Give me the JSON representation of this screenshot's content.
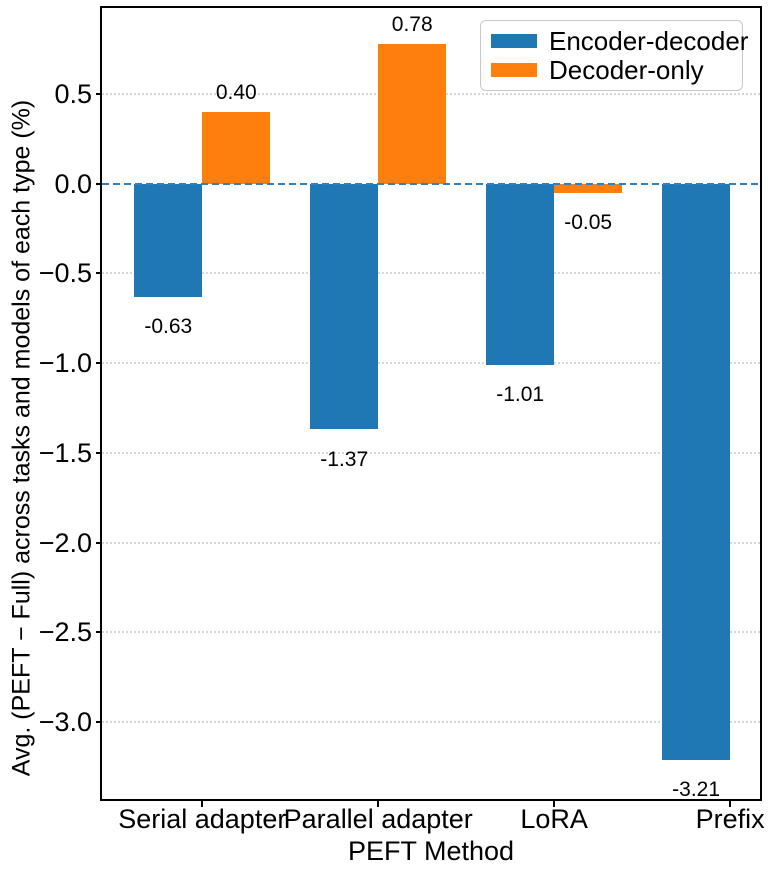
{
  "chart_data": {
    "type": "bar",
    "title": "",
    "xlabel": "PEFT Method",
    "ylabel": "Avg. (PEFT − Full) across tasks and models of each type (%)",
    "categories": [
      "Serial adapter",
      "Parallel adapter",
      "LoRA",
      "Prefix"
    ],
    "series": [
      {
        "name": "Encoder-decoder",
        "color": "#1f77b4",
        "values": [
          -0.63,
          -1.37,
          -1.01,
          -3.21
        ],
        "labels": [
          "-0.63",
          "-1.37",
          "-1.01",
          "-3.21"
        ]
      },
      {
        "name": "Decoder-only",
        "color": "#ff7f0e",
        "values": [
          0.4,
          0.78,
          -0.05,
          null
        ],
        "labels": [
          "0.40",
          "0.78",
          "-0.05",
          null
        ]
      }
    ],
    "ylim": [
      -3.43,
      0.98
    ],
    "yticks": {
      "values": [
        0.5,
        0.0,
        -0.5,
        -1.0,
        -1.5,
        -2.0,
        -2.5,
        -3.0
      ],
      "labels": [
        "0.5",
        "0.0",
        "−0.5",
        "−1.0",
        "−1.5",
        "−2.0",
        "−2.5",
        "−3.0"
      ]
    },
    "zero_line": {
      "value": 0,
      "style": "dashed",
      "color": "#2c82c4"
    },
    "grid": "horizontal dotted",
    "legend_position": "upper right"
  }
}
